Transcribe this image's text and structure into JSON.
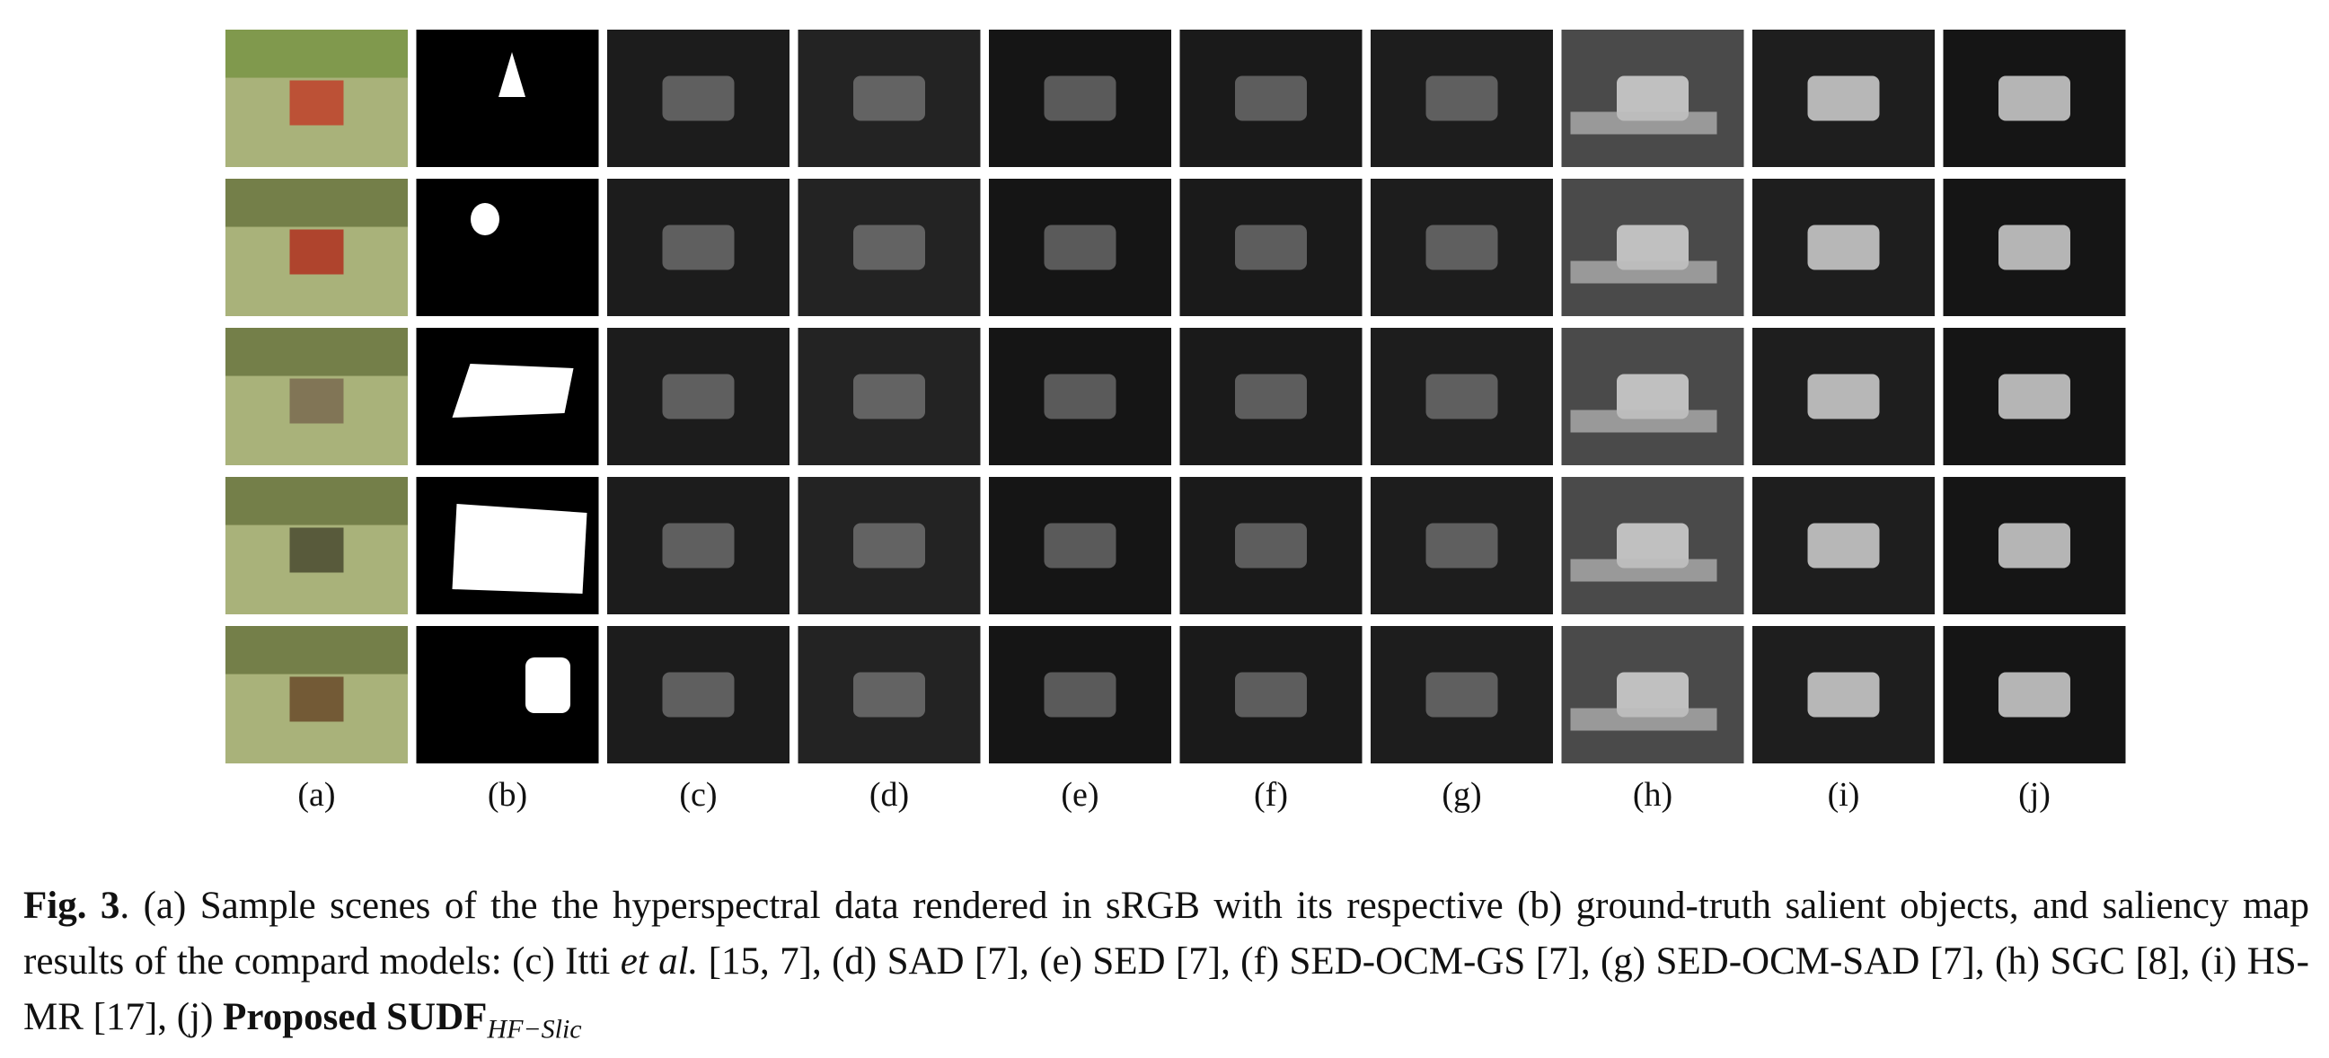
{
  "figure": {
    "column_labels": [
      "(a)",
      "(b)",
      "(c)",
      "(d)",
      "(e)",
      "(f)",
      "(g)",
      "(h)",
      "(i)",
      "(j)"
    ],
    "caption": {
      "runs": [
        "Fig. 3",
        ". (a) Sample scenes of the the hyperspectral data rendered in sRGB with its respective (b) ground-truth salient objects, and saliency map results of the compard models: (c) Itti ",
        "et al.",
        " [15, 7], (d) SAD [7], (e) SED [7], (f) SED-OCM-GS [7], (g) SED-OCM-SAD [7], (h) SGC [8], (i) HS-MR [17], (j) ",
        "Proposed SUDF",
        "HF−Slic"
      ]
    }
  }
}
